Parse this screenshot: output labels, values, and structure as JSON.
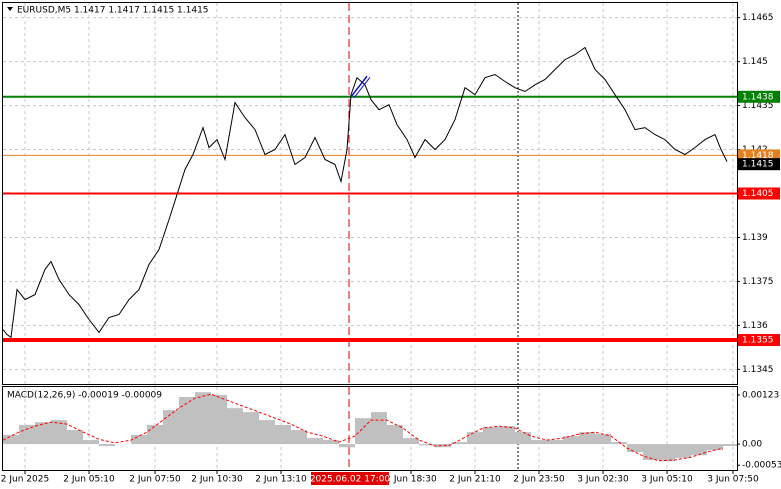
{
  "chart_data": [
    {
      "type": "line",
      "title": "EURUSD,M5 1.1417 1.1417 1.1415 1.1415",
      "xlim": [
        0,
        367
      ],
      "xticks": [
        {
          "value": 11,
          "label": "2 Jun 2025"
        },
        {
          "value": 43,
          "label": "2 Jun 05:10"
        },
        {
          "value": 76,
          "label": "2 Jun 07:50"
        },
        {
          "value": 107,
          "label": "2 Jun 10:30"
        },
        {
          "value": 139,
          "label": "2 Jun 13:10"
        },
        {
          "value": 204,
          "label": "2 Jun 18:30"
        },
        {
          "value": 236,
          "label": "2 Jun 21:10"
        },
        {
          "value": 268,
          "label": "2 Jun 23:50"
        },
        {
          "value": 300,
          "label": "3 Jun 02:30"
        },
        {
          "value": 332,
          "label": "3 Jun 05:10"
        },
        {
          "value": 365,
          "label": "3 Jun 07:50"
        }
      ],
      "ylim": [
        1.134,
        1.147
      ],
      "yticks": [
        1.1465,
        1.145,
        1.1435,
        1.142,
        1.1405,
        1.139,
        1.1375,
        1.136,
        1.1345
      ],
      "grid": true,
      "x": [
        0,
        2,
        4,
        7,
        11,
        16,
        21,
        24,
        28,
        33,
        38,
        43,
        48,
        53,
        58,
        63,
        68,
        73,
        78,
        83,
        87,
        91,
        95,
        100,
        103,
        107,
        111,
        116,
        121,
        126,
        131,
        136,
        141,
        146,
        151,
        156,
        161,
        166,
        169,
        172,
        174,
        177,
        181,
        184,
        188,
        193,
        197,
        202,
        206,
        211,
        216,
        221,
        226,
        231,
        236,
        241,
        246,
        251,
        256,
        261,
        266,
        271,
        276,
        281,
        286,
        291,
        296,
        301,
        306,
        311,
        316,
        321,
        326,
        331,
        336,
        341,
        346,
        351,
        356,
        359,
        362
      ],
      "series": [
        {
          "color": "#000000",
          "values": [
            1.13586,
            1.13569,
            1.13559,
            1.13722,
            1.13688,
            1.13705,
            1.13791,
            1.13818,
            1.13757,
            1.13705,
            1.13671,
            1.1362,
            1.13576,
            1.13627,
            1.13637,
            1.13688,
            1.13722,
            1.13808,
            1.13859,
            1.13961,
            1.14046,
            1.14132,
            1.14183,
            1.14275,
            1.14207,
            1.14234,
            1.14166,
            1.1436,
            1.14309,
            1.14268,
            1.14183,
            1.142,
            1.14251,
            1.14149,
            1.14173,
            1.14241,
            1.14166,
            1.14149,
            1.14091,
            1.142,
            1.14387,
            1.14445,
            1.14421,
            1.1437,
            1.14336,
            1.14353,
            1.14285,
            1.14234,
            1.14173,
            1.14234,
            1.142,
            1.14234,
            1.14302,
            1.14411,
            1.14387,
            1.14445,
            1.14456,
            1.14432,
            1.14411,
            1.14398,
            1.14421,
            1.14439,
            1.14473,
            1.14507,
            1.14524,
            1.14548,
            1.14473,
            1.14439,
            1.14387,
            1.14336,
            1.14268,
            1.14275,
            1.14251,
            1.14234,
            1.142,
            1.14183,
            1.14207,
            1.14234,
            1.14251,
            1.142,
            1.14159
          ]
        }
      ],
      "levels": [
        {
          "value": 1.1438,
          "color": "#008000",
          "width": 2
        },
        {
          "value": 1.1418,
          "color": "#e08020",
          "width": 1
        },
        {
          "value": 1.1405,
          "color": "#ff0000",
          "width": 2
        },
        {
          "value": 1.1355,
          "color": "#ff0000",
          "width": 4
        }
      ],
      "current_price": {
        "value": 1.1415,
        "color": "#000000"
      },
      "vlines": [
        {
          "x": 173,
          "label": "2025.06.02 17:00",
          "color": "#e00000",
          "style": "dashed"
        },
        {
          "x": 257.5,
          "color": "#000000",
          "style": "dotted"
        }
      ],
      "trendline": {
        "x": [
          174,
          182
        ],
        "y": [
          1.1438,
          1.1445
        ],
        "color": "#1010c0"
      }
    },
    {
      "type": "macd",
      "title": "MACD(12,26,9) -0.00019 -0.00009",
      "xlim": [
        0,
        367
      ],
      "ylim": [
        -0.00065,
        0.00143
      ],
      "yticks": [
        {
          "value": 0.00123,
          "label": "0.00123"
        },
        {
          "value": 0,
          "label": "0.00"
        },
        {
          "value": -0.00053,
          "label": "-0.00053"
        }
      ],
      "x": [
        0,
        8,
        16,
        24,
        32,
        40,
        48,
        56,
        64,
        72,
        80,
        88,
        96,
        104,
        112,
        120,
        128,
        136,
        144,
        152,
        160,
        168,
        176,
        184,
        192,
        200,
        208,
        216,
        224,
        232,
        240,
        248,
        256,
        264,
        272,
        280,
        288,
        296,
        304,
        312,
        320,
        328,
        336,
        344,
        352,
        360
      ],
      "series": [
        {
          "kind": "bar",
          "color": "#c0c0c0",
          "values": [
            0.00023,
            0.00048,
            0.00055,
            0.0006,
            0.00035,
            0.0001,
            -5e-05,
            0,
            0.00023,
            0.00048,
            0.00085,
            0.00118,
            0.0013,
            0.00123,
            0.0009,
            0.0008,
            0.0006,
            0.00048,
            0.00035,
            0.00015,
            0.0001,
            -8e-05,
            0.00065,
            0.0008,
            0.00048,
            0.00015,
            -3e-05,
            -8e-05,
            5e-05,
            0.0003,
            0.00043,
            0.00045,
            0.0003,
            0.0001,
            0.0001,
            0.0002,
            0.0003,
            0.00025,
            5e-05,
            -0.0002,
            -0.0004,
            -0.00043,
            -0.00035,
            -0.00028,
            -0.00015,
            -5e-05
          ]
        },
        {
          "kind": "line",
          "color": "#ff0000",
          "dashed": true,
          "values": [
            0.0001,
            0.0003,
            0.00045,
            0.00055,
            0.0005,
            0.0003,
            0.00012,
            3e-05,
            0.0001,
            0.0003,
            0.0006,
            0.0009,
            0.00115,
            0.00125,
            0.0011,
            0.00095,
            0.0008,
            0.00065,
            0.0005,
            0.0003,
            0.0002,
            5e-05,
            0.0002,
            0.0006,
            0.0006,
            0.0004,
            0.0001,
            -5e-05,
            -2e-05,
            0.0002,
            0.0004,
            0.00045,
            0.0004,
            0.0002,
            0.0001,
            0.00015,
            0.00025,
            0.0003,
            0.0002,
            -0.0001,
            -0.0003,
            -0.00042,
            -0.0004,
            -0.00033,
            -0.0002,
            -0.0001
          ]
        }
      ]
    }
  ]
}
